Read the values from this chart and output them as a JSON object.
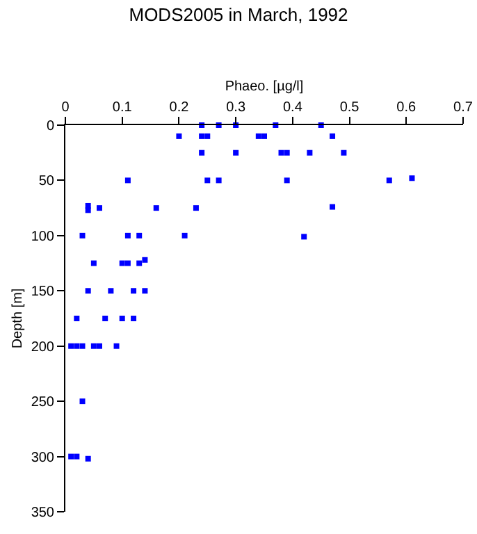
{
  "chart_data": {
    "type": "scatter",
    "title": "MODS2005 in March, 1992",
    "xlabel": "Phaeo. [µg/l]",
    "ylabel": "Depth [m]",
    "color": "#0000ff",
    "marker": "square",
    "x": [
      0.24,
      0.27,
      0.3,
      0.37,
      0.45,
      0.2,
      0.24,
      0.25,
      0.34,
      0.35,
      0.47,
      0.24,
      0.3,
      0.38,
      0.39,
      0.43,
      0.49,
      0.11,
      0.25,
      0.27,
      0.39,
      0.57,
      0.61,
      0.04,
      0.04,
      0.06,
      0.16,
      0.23,
      0.47,
      0.03,
      0.11,
      0.13,
      0.21,
      0.42,
      0.05,
      0.1,
      0.11,
      0.13,
      0.14,
      0.04,
      0.08,
      0.12,
      0.14,
      0.02,
      0.07,
      0.1,
      0.12,
      0.01,
      0.02,
      0.03,
      0.05,
      0.06,
      0.09,
      0.03,
      0.01,
      0.02,
      0.04
    ],
    "values": [
      0,
      0,
      0,
      0,
      0,
      10,
      10,
      10,
      10,
      10,
      10,
      25,
      25,
      25,
      25,
      25,
      25,
      50,
      50,
      50,
      50,
      50,
      48,
      73,
      77,
      75,
      75,
      75,
      74,
      100,
      100,
      100,
      100,
      101,
      125,
      125,
      125,
      125,
      122,
      150,
      150,
      150,
      150,
      175,
      175,
      175,
      175,
      200,
      200,
      200,
      200,
      200,
      200,
      250,
      300,
      300,
      302
    ],
    "xlim": [
      0,
      0.7
    ],
    "xticks": [
      0,
      0.1,
      0.2,
      0.3,
      0.4,
      0.5,
      0.6,
      0.7
    ],
    "ylim": [
      350,
      0
    ],
    "yticks": [
      0,
      50,
      100,
      150,
      200,
      250,
      300,
      350
    ]
  }
}
